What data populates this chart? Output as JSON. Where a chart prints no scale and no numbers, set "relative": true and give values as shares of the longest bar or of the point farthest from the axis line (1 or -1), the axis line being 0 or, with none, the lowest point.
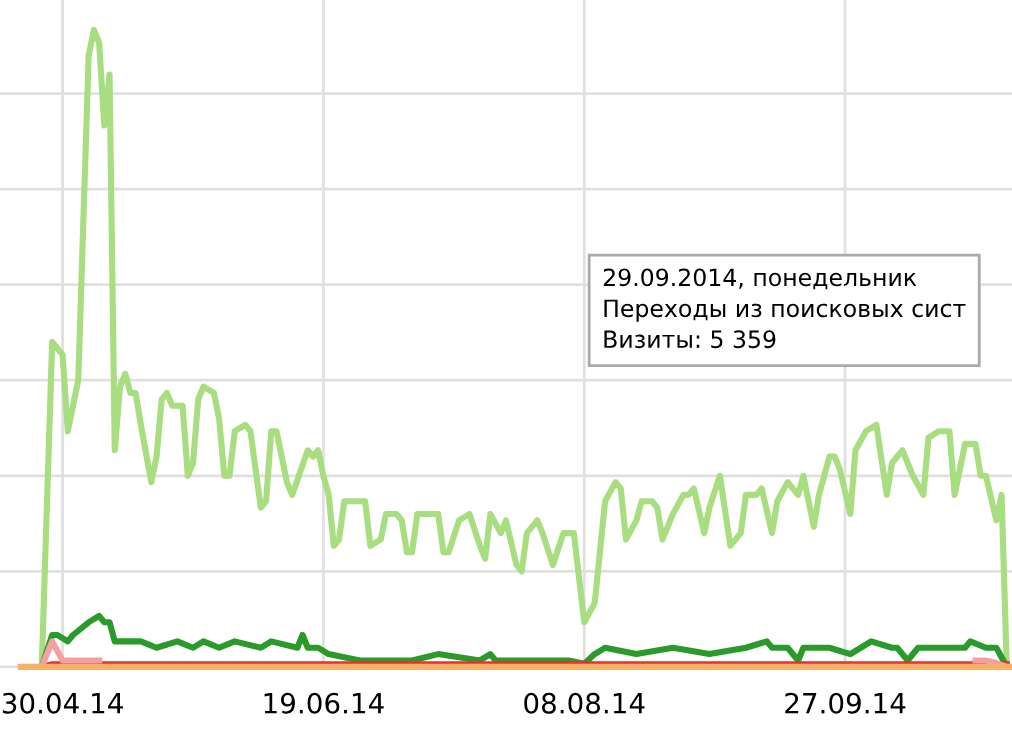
{
  "chart_data": {
    "type": "line",
    "relative": true,
    "grid": true,
    "marker": "none",
    "line_style": "solid",
    "xlim": [
      "2014-04-18",
      "2014-10-29"
    ],
    "xticks": [
      {
        "value": "2014-04-30",
        "label": "30.04.14"
      },
      {
        "value": "2014-06-19",
        "label": "19.06.14"
      },
      {
        "value": "2014-08-08",
        "label": "08.08.14"
      },
      {
        "value": "2014-09-27",
        "label": "27.09.14"
      }
    ],
    "annotations": [
      "29.09.2014, понедельник\nПереходы из поисковых сист\nВизиты: 5 359"
    ],
    "series": [
      {
        "color": "#a8dd80",
        "x": [
          "2014-04-26",
          "2014-04-28",
          "2014-04-30",
          "2014-05-01",
          "2014-05-03",
          "2014-05-05",
          "2014-05-06",
          "2014-05-07",
          "2014-05-08",
          "2014-05-09",
          "2014-05-10",
          "2014-05-11",
          "2014-05-12",
          "2014-05-13",
          "2014-05-14",
          "2014-05-15",
          "2014-05-17",
          "2014-05-18",
          "2014-05-19",
          "2014-05-20",
          "2014-05-21",
          "2014-05-23",
          "2014-05-24",
          "2014-05-25",
          "2014-05-26",
          "2014-05-27",
          "2014-05-29",
          "2014-05-30",
          "2014-05-31",
          "2014-06-01",
          "2014-06-02",
          "2014-06-04",
          "2014-06-05",
          "2014-06-07",
          "2014-06-08",
          "2014-06-09",
          "2014-06-10",
          "2014-06-12",
          "2014-06-13",
          "2014-06-16",
          "2014-06-17",
          "2014-06-18",
          "2014-06-19",
          "2014-06-20",
          "2014-06-21",
          "2014-06-22",
          "2014-06-23",
          "2014-06-26",
          "2014-06-27",
          "2014-06-28",
          "2014-06-30",
          "2014-07-01",
          "2014-07-02",
          "2014-07-03",
          "2014-07-04",
          "2014-07-05",
          "2014-07-06",
          "2014-07-07",
          "2014-07-09",
          "2014-07-11",
          "2014-07-12",
          "2014-07-13",
          "2014-07-15",
          "2014-07-17",
          "2014-07-19",
          "2014-07-20",
          "2014-07-21",
          "2014-07-23",
          "2014-07-24",
          "2014-07-26",
          "2014-07-27",
          "2014-07-28",
          "2014-07-30",
          "2014-07-31",
          "2014-08-02",
          "2014-08-04",
          "2014-08-06",
          "2014-08-08",
          "2014-08-10",
          "2014-08-12",
          "2014-08-14",
          "2014-08-15",
          "2014-08-16",
          "2014-08-18",
          "2014-08-19",
          "2014-08-21",
          "2014-08-22",
          "2014-08-23",
          "2014-08-25",
          "2014-08-27",
          "2014-08-28",
          "2014-08-29",
          "2014-08-31",
          "2014-09-01",
          "2014-09-03",
          "2014-09-05",
          "2014-09-07",
          "2014-09-08",
          "2014-09-10",
          "2014-09-11",
          "2014-09-13",
          "2014-09-14",
          "2014-09-16",
          "2014-09-18",
          "2014-09-19",
          "2014-09-21",
          "2014-09-22",
          "2014-09-24",
          "2014-09-25",
          "2014-09-26",
          "2014-09-28",
          "2014-09-29",
          "2014-10-01",
          "2014-10-03",
          "2014-10-05",
          "2014-10-06",
          "2014-10-08",
          "2014-10-10",
          "2014-10-12",
          "2014-10-13",
          "2014-10-15",
          "2014-10-17",
          "2014-10-18",
          "2014-10-20",
          "2014-10-22",
          "2014-10-23",
          "2014-10-24",
          "2014-10-26",
          "2014-10-27",
          "2014-10-28"
        ],
        "values": [
          0,
          0.51,
          0.49,
          0.37,
          0.45,
          0.96,
          1.0,
          0.98,
          0.85,
          0.93,
          0.34,
          0.44,
          0.46,
          0.43,
          0.43,
          0.38,
          0.29,
          0.33,
          0.42,
          0.43,
          0.41,
          0.41,
          0.3,
          0.32,
          0.42,
          0.44,
          0.43,
          0.39,
          0.3,
          0.3,
          0.37,
          0.38,
          0.37,
          0.25,
          0.26,
          0.37,
          0.37,
          0.29,
          0.27,
          0.34,
          0.33,
          0.34,
          0.3,
          0.27,
          0.19,
          0.2,
          0.26,
          0.26,
          0.26,
          0.19,
          0.2,
          0.24,
          0.24,
          0.24,
          0.23,
          0.18,
          0.18,
          0.24,
          0.24,
          0.24,
          0.18,
          0.18,
          0.23,
          0.24,
          0.19,
          0.17,
          0.24,
          0.21,
          0.23,
          0.16,
          0.15,
          0.21,
          0.23,
          0.21,
          0.16,
          0.21,
          0.21,
          0.07,
          0.1,
          0.26,
          0.29,
          0.28,
          0.2,
          0.23,
          0.26,
          0.26,
          0.25,
          0.2,
          0.24,
          0.27,
          0.27,
          0.28,
          0.21,
          0.25,
          0.3,
          0.19,
          0.21,
          0.27,
          0.27,
          0.28,
          0.21,
          0.26,
          0.29,
          0.27,
          0.3,
          0.22,
          0.27,
          0.33,
          0.33,
          0.31,
          0.24,
          0.34,
          0.37,
          0.38,
          0.27,
          0.32,
          0.34,
          0.3,
          0.27,
          0.36,
          0.37,
          0.37,
          0.27,
          0.35,
          0.35,
          0.3,
          0.3,
          0.23,
          0.27,
          0
        ]
      },
      {
        "color": "#2a9a2a",
        "x": [
          "2014-04-26",
          "2014-04-28",
          "2014-04-29",
          "2014-05-01",
          "2014-05-02",
          "2014-05-05",
          "2014-05-07",
          "2014-05-08",
          "2014-05-09",
          "2014-05-10",
          "2014-05-15",
          "2014-05-18",
          "2014-05-22",
          "2014-05-25",
          "2014-05-27",
          "2014-05-30",
          "2014-06-02",
          "2014-06-07",
          "2014-06-09",
          "2014-06-14",
          "2014-06-15",
          "2014-06-16",
          "2014-06-18",
          "2014-06-20",
          "2014-06-26",
          "2014-07-06",
          "2014-07-11",
          "2014-07-19",
          "2014-07-21",
          "2014-07-22",
          "2014-07-31",
          "2014-08-05",
          "2014-08-08",
          "2014-08-10",
          "2014-08-12",
          "2014-08-18",
          "2014-08-25",
          "2014-09-01",
          "2014-09-08",
          "2014-09-12",
          "2014-09-13",
          "2014-09-16",
          "2014-09-18",
          "2014-09-19",
          "2014-09-24",
          "2014-09-28",
          "2014-10-02",
          "2014-10-06",
          "2014-10-07",
          "2014-10-09",
          "2014-10-11",
          "2014-10-16",
          "2014-10-20",
          "2014-10-21",
          "2014-10-24",
          "2014-10-26",
          "2014-10-28"
        ],
        "values": [
          0,
          0.05,
          0.05,
          0.04,
          0.05,
          0.07,
          0.08,
          0.07,
          0.07,
          0.04,
          0.04,
          0.03,
          0.04,
          0.03,
          0.04,
          0.03,
          0.04,
          0.03,
          0.04,
          0.03,
          0.05,
          0.03,
          0.03,
          0.02,
          0.01,
          0.01,
          0.02,
          0.01,
          0.02,
          0.01,
          0.01,
          0.01,
          0.005,
          0.02,
          0.03,
          0.02,
          0.03,
          0.02,
          0.03,
          0.04,
          0.03,
          0.03,
          0.01,
          0.03,
          0.03,
          0.02,
          0.04,
          0.03,
          0.03,
          0.01,
          0.03,
          0.03,
          0.03,
          0.04,
          0.03,
          0.03,
          0
        ]
      },
      {
        "color": "#e83030",
        "x": [
          "2014-04-26",
          "2014-04-28",
          "2014-10-28"
        ],
        "values": [
          0,
          0.004,
          0.004
        ]
      },
      {
        "color": "#f4a0a0",
        "x": [
          "2014-04-26",
          "2014-04-28",
          "2014-04-30",
          "2014-05-05",
          "2014-05-07",
          "2014-05-14",
          "2014-10-20",
          "2014-10-22",
          "2014-10-24",
          "2014-10-26",
          "2014-10-28"
        ],
        "values": [
          0,
          0.04,
          0.01,
          0.01,
          0.01,
          null,
          null,
          0.01,
          0.01,
          0.006,
          0
        ]
      },
      {
        "color": "#f7b26a",
        "x": [
          "2014-04-22",
          "2014-10-29"
        ],
        "values": [
          0,
          0
        ]
      }
    ]
  }
}
